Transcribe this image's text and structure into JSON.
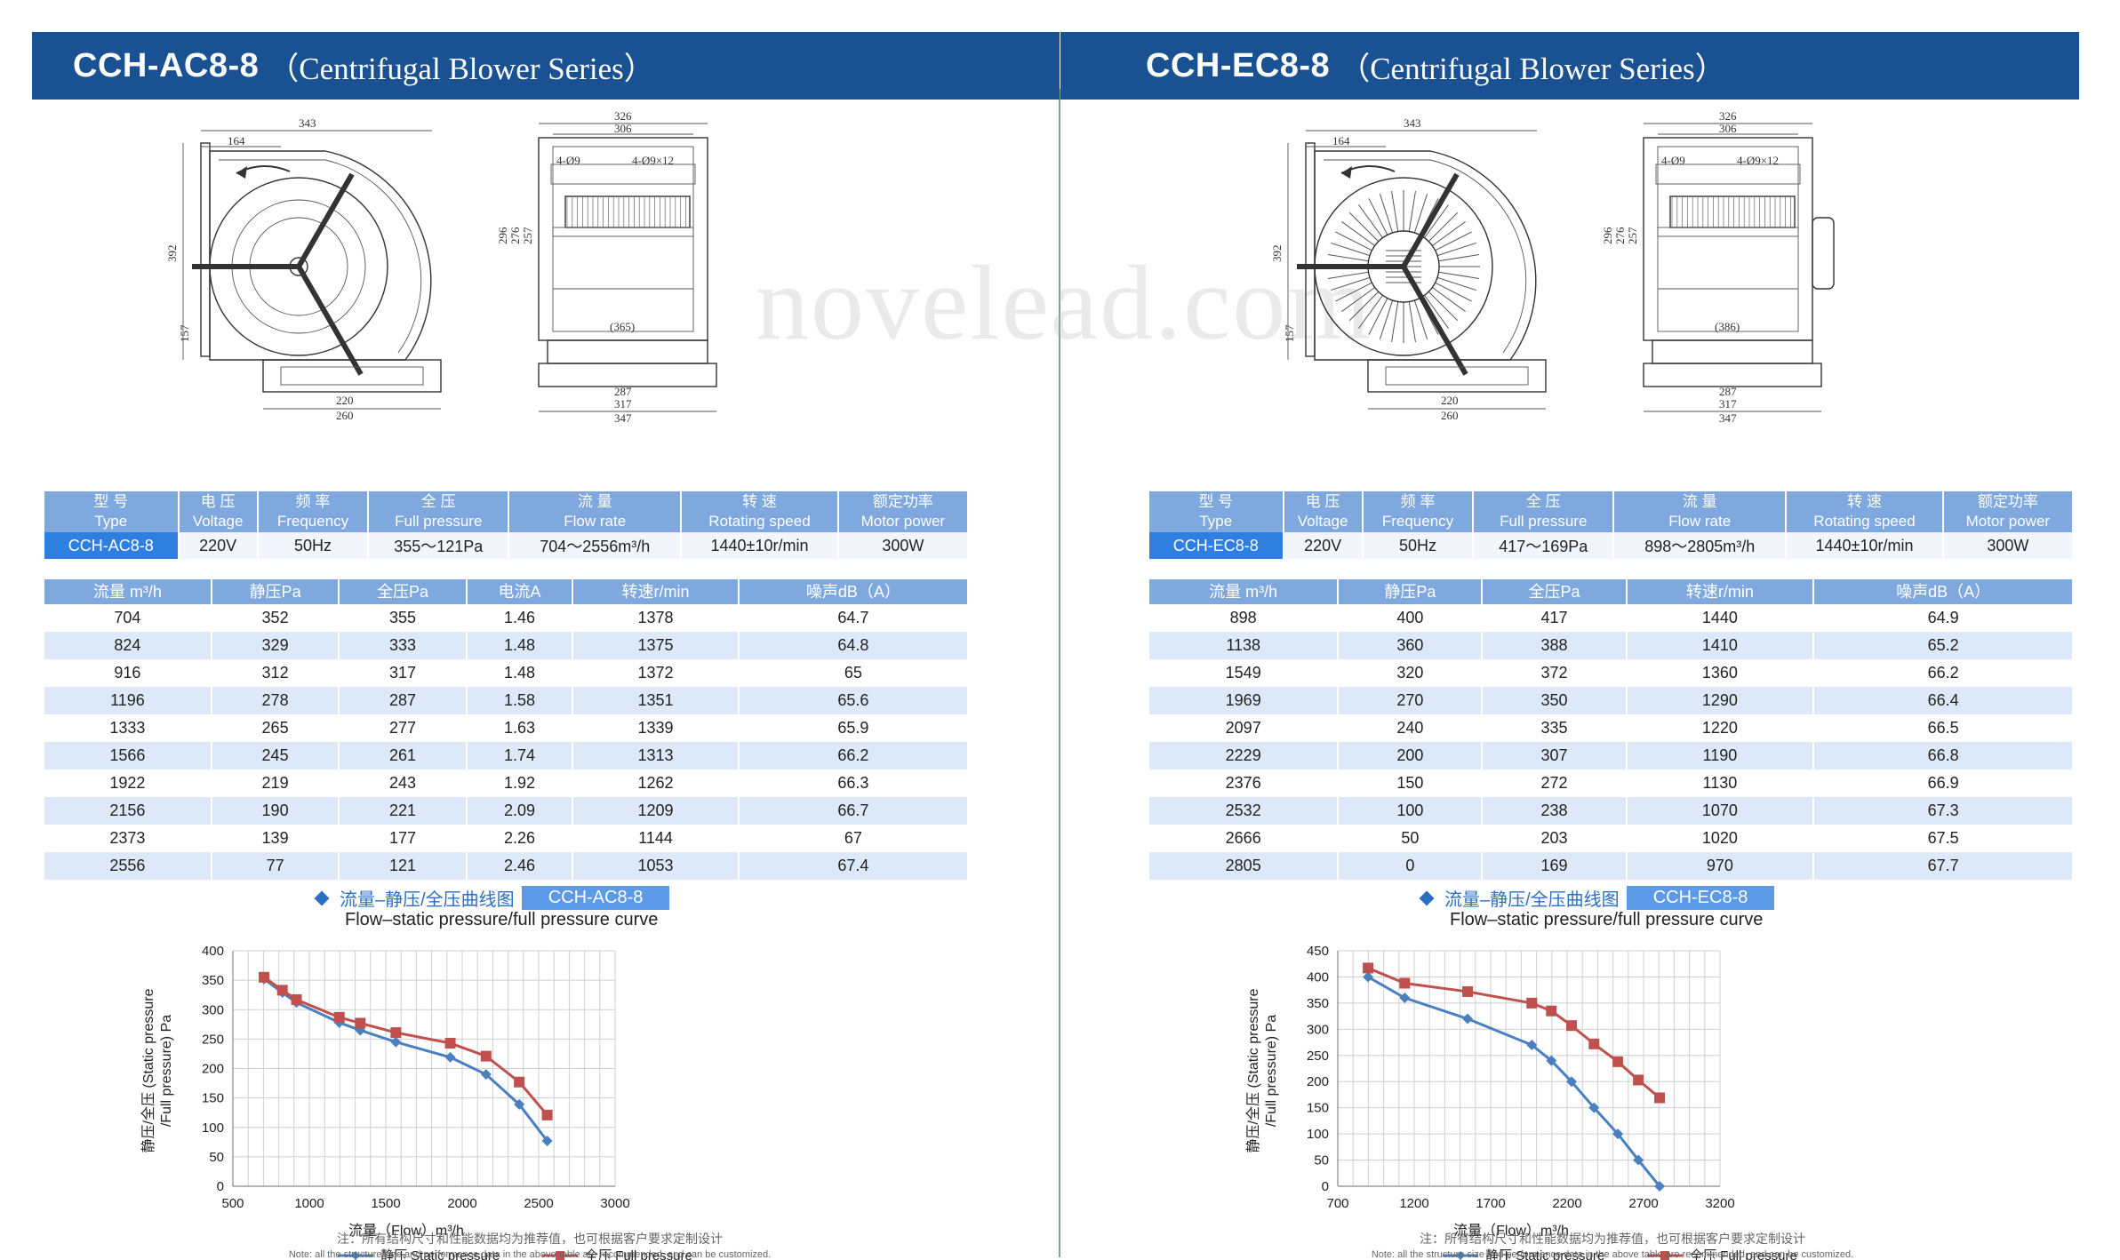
{
  "watermark": "novelead.com",
  "panels": [
    {
      "id": "ac",
      "title_model": "CCH-AC8-8",
      "title_series": "（Centrifugal Blower Series）",
      "drawing": {
        "dims_side": [
          "343",
          "164",
          "392",
          "157",
          "220",
          "260"
        ],
        "dims_front": [
          "326",
          "306",
          "4-Ø9",
          "4-Ø9×12",
          "296",
          "276",
          "257",
          "(365)",
          "287",
          "317",
          "347"
        ],
        "motor_type": "ac"
      },
      "spec": {
        "headers": [
          {
            "cn": "型 号",
            "en": "Type"
          },
          {
            "cn": "电 压",
            "en": "Voltage"
          },
          {
            "cn": "频 率",
            "en": "Frequency"
          },
          {
            "cn": "全 压",
            "en": "Full pressure"
          },
          {
            "cn": "流 量",
            "en": "Flow rate"
          },
          {
            "cn": "转 速",
            "en": "Rotating speed"
          },
          {
            "cn": "额定功率",
            "en": "Motor power"
          }
        ],
        "values": [
          "CCH-AC8-8",
          "220V",
          "50Hz",
          "355～121Pa",
          "704～2556m³/h",
          "1440±10r/min",
          "300W"
        ]
      },
      "perf": {
        "headers": [
          "流量 m³/h",
          "静压Pa",
          "全压Pa",
          "电流A",
          "转速r/min",
          "噪声dB（A）"
        ],
        "rows": [
          [
            "704",
            "352",
            "355",
            "1.46",
            "1378",
            "64.7"
          ],
          [
            "824",
            "329",
            "333",
            "1.48",
            "1375",
            "64.8"
          ],
          [
            "916",
            "312",
            "317",
            "1.48",
            "1372",
            "65"
          ],
          [
            "1196",
            "278",
            "287",
            "1.58",
            "1351",
            "65.6"
          ],
          [
            "1333",
            "265",
            "277",
            "1.63",
            "1339",
            "65.9"
          ],
          [
            "1566",
            "245",
            "261",
            "1.74",
            "1313",
            "66.2"
          ],
          [
            "1922",
            "219",
            "243",
            "1.92",
            "1262",
            "66.3"
          ],
          [
            "2156",
            "190",
            "221",
            "2.09",
            "1209",
            "66.7"
          ],
          [
            "2373",
            "139",
            "177",
            "2.26",
            "1144",
            "67"
          ],
          [
            "2556",
            "77",
            "121",
            "2.46",
            "1053",
            "67.4"
          ]
        ]
      },
      "curve_title_cn": "流量–静压/全压曲线图",
      "curve_tag": "CCH-AC8-8",
      "curve_subtitle": "Flow–static pressure/full pressure curve",
      "chart_data": {
        "type": "line",
        "title": "流量–静压/全压曲线图",
        "xlabel": "流量（Flow）m³/h",
        "ylabel": "静压/全压 (Static pressure /Full pressure) Pa",
        "ylabel_line1": "静压/全压 (Static pressure",
        "ylabel_line2": "/Full pressure) Pa",
        "xlim": [
          500,
          3000
        ],
        "ylim": [
          0,
          400
        ],
        "xticks": [
          500,
          1000,
          1500,
          2000,
          2500,
          3000
        ],
        "yticks": [
          0,
          50,
          100,
          150,
          200,
          250,
          300,
          350,
          400
        ],
        "x_minor_step": 100,
        "grid": true,
        "legend_position": "bottom",
        "x": [
          704,
          824,
          916,
          1196,
          1333,
          1566,
          1922,
          2156,
          2373,
          2556
        ],
        "series": [
          {
            "name": "静压 Static pressure",
            "color": "#4a7fc0",
            "marker": "diamond",
            "values": [
              352,
              329,
              312,
              278,
              265,
              245,
              219,
              190,
              139,
              77
            ]
          },
          {
            "name": "全压 Full pressure",
            "color": "#c0504d",
            "marker": "square",
            "values": [
              355,
              333,
              317,
              287,
              277,
              261,
              243,
              221,
              177,
              121
            ]
          }
        ]
      },
      "note_cn": "注：所有结构尺寸和性能数据均为推荐值，也可根据客户要求定制设计",
      "note_en": "Note: all the structure size and performance data in the above table are recommended, and can be customized."
    },
    {
      "id": "ec",
      "title_model": "CCH-EC8-8",
      "title_series": "（Centrifugal Blower Series）",
      "drawing": {
        "dims_side": [
          "343",
          "164",
          "392",
          "157",
          "220",
          "260"
        ],
        "dims_front": [
          "326",
          "306",
          "4-Ø9",
          "4-Ø9×12",
          "296",
          "276",
          "257",
          "(386)",
          "287",
          "317",
          "347"
        ],
        "motor_type": "ec"
      },
      "spec": {
        "headers": [
          {
            "cn": "型 号",
            "en": "Type"
          },
          {
            "cn": "电 压",
            "en": "Voltage"
          },
          {
            "cn": "频 率",
            "en": "Frequency"
          },
          {
            "cn": "全 压",
            "en": "Full pressure"
          },
          {
            "cn": "流 量",
            "en": "Flow rate"
          },
          {
            "cn": "转 速",
            "en": "Rotating speed"
          },
          {
            "cn": "额定功率",
            "en": "Motor power"
          }
        ],
        "values": [
          "CCH-EC8-8",
          "220V",
          "50Hz",
          "417～169Pa",
          "898～2805m³/h",
          "1440±10r/min",
          "300W"
        ]
      },
      "perf": {
        "headers": [
          "流量 m³/h",
          "静压Pa",
          "全压Pa",
          "转速r/min",
          "噪声dB（A）"
        ],
        "rows": [
          [
            "898",
            "400",
            "417",
            "1440",
            "64.9"
          ],
          [
            "1138",
            "360",
            "388",
            "1410",
            "65.2"
          ],
          [
            "1549",
            "320",
            "372",
            "1360",
            "66.2"
          ],
          [
            "1969",
            "270",
            "350",
            "1290",
            "66.4"
          ],
          [
            "2097",
            "240",
            "335",
            "1220",
            "66.5"
          ],
          [
            "2229",
            "200",
            "307",
            "1190",
            "66.8"
          ],
          [
            "2376",
            "150",
            "272",
            "1130",
            "66.9"
          ],
          [
            "2532",
            "100",
            "238",
            "1070",
            "67.3"
          ],
          [
            "2666",
            "50",
            "203",
            "1020",
            "67.5"
          ],
          [
            "2805",
            "0",
            "169",
            "970",
            "67.7"
          ]
        ]
      },
      "curve_title_cn": "流量–静压/全压曲线图",
      "curve_tag": "CCH-EC8-8",
      "curve_subtitle": "Flow–static pressure/full pressure curve",
      "chart_data": {
        "type": "line",
        "title": "流量–静压/全压曲线图",
        "xlabel": "流量（Flow）m³/h",
        "ylabel": "静压/全压 (Static pressure /Full pressure) Pa",
        "ylabel_line1": "静压/全压 (Static pressure",
        "ylabel_line2": "/Full pressure) Pa",
        "xlim": [
          700,
          3200
        ],
        "ylim": [
          0,
          450
        ],
        "xticks": [
          700,
          1200,
          1700,
          2200,
          2700,
          3200
        ],
        "yticks": [
          0,
          50,
          100,
          150,
          200,
          250,
          300,
          350,
          400,
          450
        ],
        "x_minor_step": 100,
        "grid": true,
        "legend_position": "bottom",
        "x": [
          898,
          1138,
          1549,
          1969,
          2097,
          2229,
          2376,
          2532,
          2666,
          2805
        ],
        "series": [
          {
            "name": "静压 Static pressure",
            "color": "#4a7fc0",
            "marker": "diamond",
            "values": [
              400,
              360,
              320,
              270,
              240,
              200,
              150,
              100,
              50,
              0
            ]
          },
          {
            "name": "全压 Full pressure",
            "color": "#c0504d",
            "marker": "square",
            "values": [
              417,
              388,
              372,
              350,
              335,
              307,
              272,
              238,
              203,
              169
            ]
          }
        ]
      },
      "note_cn": "注：所有结构尺寸和性能数据均为推荐值，也可根据客户要求定制设计",
      "note_en": "Note: all the structure size and performance data in the above table are recommended, and can be customized."
    }
  ]
}
